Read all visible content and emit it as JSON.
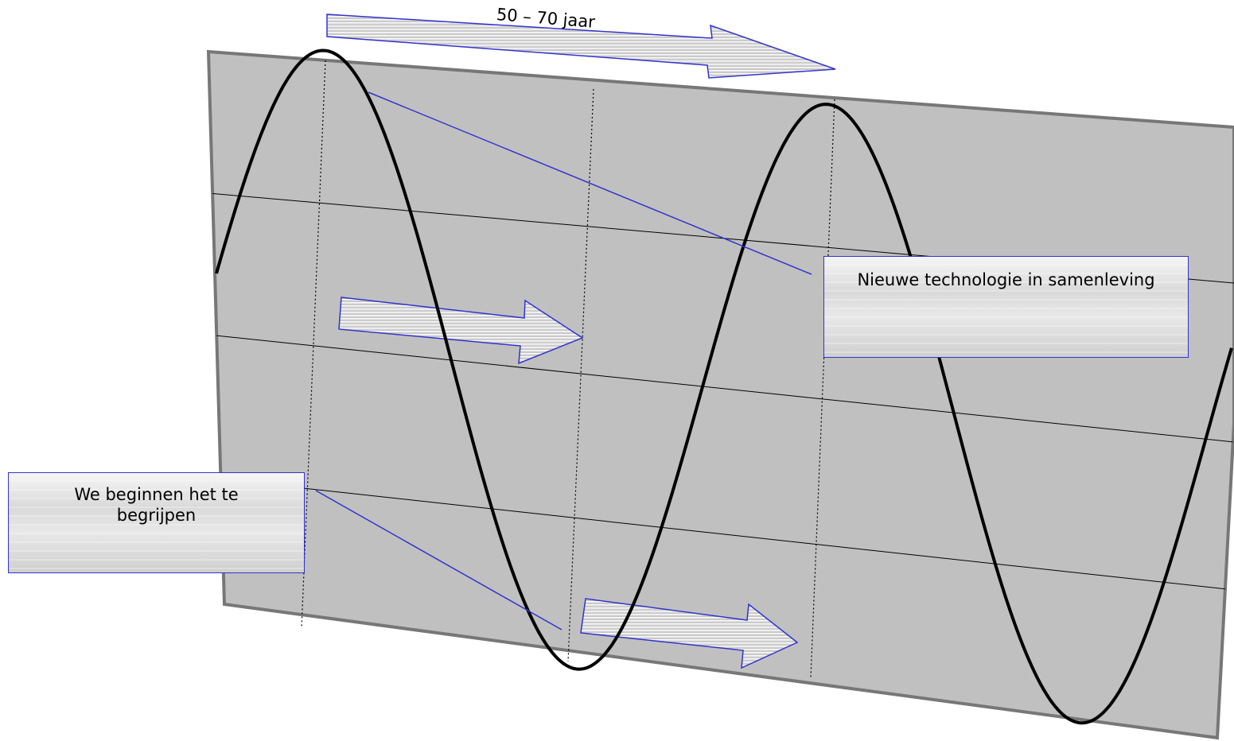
{
  "period_label": "50 – 70 jaar",
  "callouts": {
    "technology": "Nieuwe technologie in samenleving",
    "understanding": "We beginnen het te begrijpen"
  },
  "colors": {
    "panel_fill": "#c0c0c0",
    "panel_border": "#7a7a7a",
    "wave": "#000000",
    "accent_line": "#3333cc",
    "arrow_fill": "#e0e0e0"
  }
}
